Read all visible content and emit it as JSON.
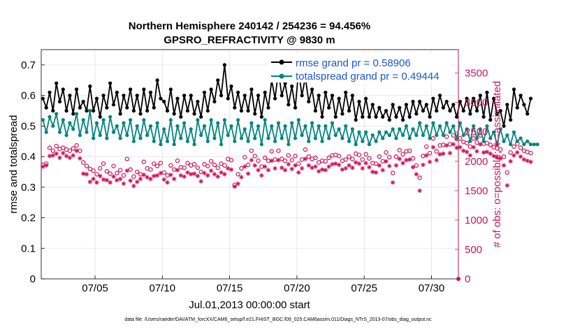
{
  "colors": {
    "rmse": "#000000",
    "spread": "#00857f",
    "obs": "#d0125a",
    "legend_text": "#1a56d6"
  },
  "chart_data": {
    "type": "line",
    "title": "Northern Hemisphere 240142 / 254236 = 94.456%",
    "subtitle": "GPSRO_REFRACTIVITY @ 9830 m",
    "xlabel": "Jul.01,2013 00:00:00 start",
    "ylabel": "rmse and totalspread",
    "y2label": "# of obs: o=possible; ∗=assimilated",
    "footer": "data file: /Users/raeder/DAI/ATM_forcXX/CAM6_setup/f.e21.FHIST_BGC.f09_025.CAM6assim.011/Diags_NTrS_2013-07/obs_diag_output.nc",
    "xlim": [
      1,
      32
    ],
    "ylim": [
      0,
      0.75
    ],
    "y2lim": [
      0,
      3900
    ],
    "xticks": [
      5,
      10,
      15,
      20,
      25,
      30
    ],
    "xtick_labels": [
      "07/05",
      "07/10",
      "07/15",
      "07/20",
      "07/25",
      "07/30"
    ],
    "yticks": [
      0,
      0.1,
      0.2,
      0.3,
      0.4,
      0.5,
      0.6,
      0.7
    ],
    "ytick_labels": [
      "0",
      "0.1",
      "0.2",
      "0.3",
      "0.4",
      "0.5",
      "0.6",
      "0.7"
    ],
    "y2ticks": [
      0,
      500,
      1000,
      1500,
      2000,
      2500,
      3000,
      3500
    ],
    "y2tick_labels": [
      "0",
      "500",
      "1000",
      "1500",
      "2000",
      "2500",
      "3000",
      "3500"
    ],
    "grid": true,
    "legend_placement": "top-right",
    "x_start": 1.125,
    "x_step": 0.25,
    "series": [
      {
        "name": "rmse grand pr = 0.58906",
        "axis": "left",
        "values": [
          0.59,
          0.56,
          0.61,
          0.55,
          0.64,
          0.58,
          0.62,
          0.55,
          0.6,
          0.54,
          0.62,
          0.56,
          0.58,
          0.55,
          0.63,
          0.55,
          0.59,
          0.53,
          0.6,
          0.56,
          0.64,
          0.57,
          0.61,
          0.54,
          0.6,
          0.56,
          0.62,
          0.55,
          0.6,
          0.54,
          0.62,
          0.55,
          0.61,
          0.56,
          0.65,
          0.59,
          0.58,
          0.55,
          0.62,
          0.54,
          0.59,
          0.53,
          0.6,
          0.55,
          0.6,
          0.54,
          0.58,
          0.53,
          0.61,
          0.55,
          0.62,
          0.58,
          0.65,
          0.6,
          0.7,
          0.59,
          0.63,
          0.56,
          0.61,
          0.55,
          0.6,
          0.55,
          0.62,
          0.54,
          0.6,
          0.53,
          0.61,
          0.56,
          0.65,
          0.59,
          0.68,
          0.6,
          0.64,
          0.57,
          0.63,
          0.56,
          0.68,
          0.6,
          0.66,
          0.58,
          0.62,
          0.55,
          0.6,
          0.53,
          0.61,
          0.56,
          0.6,
          0.53,
          0.59,
          0.54,
          0.61,
          0.55,
          0.6,
          0.52,
          0.58,
          0.53,
          0.59,
          0.53,
          0.57,
          0.53,
          0.56,
          0.53,
          0.55,
          0.52,
          0.57,
          0.53,
          0.56,
          0.52,
          0.57,
          0.53,
          0.58,
          0.54,
          0.58,
          0.55,
          0.57,
          0.53,
          0.59,
          0.55,
          0.6,
          0.56,
          0.58,
          0.55,
          0.57,
          0.53,
          0.58,
          0.55,
          0.59,
          0.54,
          0.59,
          0.55,
          0.6,
          0.53,
          0.61,
          0.52,
          0.59,
          0.54,
          0.55,
          0.5,
          0.57,
          0.52,
          0.62,
          0.56,
          0.6,
          0.57,
          0.54,
          0.59
        ]
      },
      {
        "name": "totalspread grand pr = 0.49444",
        "axis": "left",
        "values": [
          0.52,
          0.48,
          0.53,
          0.5,
          0.54,
          0.48,
          0.52,
          0.47,
          0.51,
          0.49,
          0.54,
          0.47,
          0.52,
          0.48,
          0.55,
          0.46,
          0.51,
          0.47,
          0.52,
          0.46,
          0.53,
          0.48,
          0.5,
          0.46,
          0.51,
          0.47,
          0.52,
          0.45,
          0.5,
          0.46,
          0.52,
          0.47,
          0.5,
          0.45,
          0.51,
          0.44,
          0.49,
          0.45,
          0.52,
          0.44,
          0.5,
          0.46,
          0.51,
          0.45,
          0.49,
          0.44,
          0.52,
          0.47,
          0.5,
          0.45,
          0.52,
          0.46,
          0.51,
          0.44,
          0.52,
          0.47,
          0.5,
          0.45,
          0.52,
          0.46,
          0.49,
          0.45,
          0.51,
          0.46,
          0.5,
          0.44,
          0.52,
          0.46,
          0.5,
          0.45,
          0.51,
          0.46,
          0.5,
          0.44,
          0.51,
          0.46,
          0.52,
          0.47,
          0.5,
          0.45,
          0.51,
          0.46,
          0.5,
          0.45,
          0.5,
          0.46,
          0.51,
          0.47,
          0.49,
          0.46,
          0.5,
          0.45,
          0.49,
          0.44,
          0.48,
          0.45,
          0.48,
          0.44,
          0.47,
          0.45,
          0.48,
          0.46,
          0.48,
          0.47,
          0.49,
          0.46,
          0.49,
          0.47,
          0.5,
          0.46,
          0.49,
          0.47,
          0.51,
          0.47,
          0.5,
          0.46,
          0.51,
          0.47,
          0.5,
          0.47,
          0.51,
          0.48,
          0.5,
          0.46,
          0.51,
          0.47,
          0.49,
          0.45,
          0.5,
          0.46,
          0.49,
          0.45,
          0.5,
          0.46,
          0.48,
          0.44,
          0.49,
          0.45,
          0.47,
          0.44,
          0.48,
          0.45,
          0.46,
          0.44,
          0.45,
          0.44,
          0.44,
          0.44
        ]
      },
      {
        "name": "possible",
        "axis": "right",
        "marker": "o",
        "values": [
          1940,
          1960,
          2230,
          2180,
          2260,
          2210,
          2230,
          2200,
          2180,
          2220,
          2270,
          2180,
          1980,
          1920,
          1870,
          1840,
          1780,
          1880,
          1960,
          1830,
          1790,
          1920,
          1800,
          1850,
          1760,
          2040,
          1860,
          1740,
          1820,
          1780,
          1990,
          1880,
          1860,
          1960,
          1920,
          1970,
          1810,
          1760,
          1930,
          1860,
          2010,
          1900,
          1890,
          1970,
          1930,
          1950,
          1890,
          1820,
          1950,
          1920,
          2000,
          1940,
          1890,
          1960,
          1930,
          2040,
          2020,
          1600,
          1780,
          1880,
          2070,
          1940,
          2180,
          2090,
          2010,
          1910,
          2060,
          2010,
          2170,
          2030,
          2180,
          2040,
          2010,
          2100,
          2020,
          2090,
          1960,
          2030,
          2200,
          2080,
          2040,
          2060,
          1980,
          2010,
          2000,
          2060,
          2100,
          2110,
          2090,
          2010,
          2030,
          2080,
          2040,
          2130,
          2110,
          2030,
          2120,
          2050,
          1970,
          1960,
          2080,
          2000,
          2150,
          2070,
          1800,
          2080,
          2190,
          2120,
          2170,
          2180,
          2050,
          1930,
          1720,
          2090,
          2250,
          2140,
          2390,
          2170,
          2270,
          2280,
          2420,
          2290,
          2440,
          2380,
          2390,
          2330,
          2310,
          2250,
          2390,
          2320,
          2440,
          2300,
          2310,
          2280,
          2240,
          2220,
          2200,
          2080,
          1810,
          2150,
          2250,
          2300,
          2230,
          2180,
          2160,
          2140
        ]
      },
      {
        "name": "assimilated",
        "axis": "right",
        "marker": "*",
        "values": [
          1910,
          1930,
          2090,
          2100,
          2130,
          2060,
          2140,
          2090,
          2060,
          2100,
          2180,
          2050,
          1790,
          1780,
          1650,
          1700,
          1640,
          1750,
          1690,
          1680,
          1640,
          1740,
          1680,
          1700,
          1620,
          1840,
          1670,
          1580,
          1650,
          1700,
          1770,
          1730,
          1700,
          1750,
          1760,
          1800,
          1690,
          1640,
          1770,
          1700,
          1850,
          1760,
          1740,
          1810,
          1780,
          1790,
          1750,
          1660,
          1800,
          1760,
          1840,
          1780,
          1740,
          1810,
          1780,
          1880,
          1860,
          1570,
          1620,
          1730,
          1910,
          1790,
          2020,
          1930,
          1850,
          1760,
          1910,
          1850,
          2010,
          1880,
          2020,
          1890,
          1850,
          1950,
          1870,
          1930,
          1810,
          1880,
          2040,
          1930,
          1890,
          1910,
          1830,
          1860,
          1850,
          1910,
          1950,
          1960,
          1940,
          1860,
          1880,
          1930,
          1890,
          1980,
          1960,
          1880,
          1970,
          1900,
          1820,
          1810,
          1930,
          1850,
          2000,
          1920,
          1640,
          1930,
          2040,
          1970,
          2020,
          2030,
          1900,
          1780,
          1500,
          1940,
          2100,
          1990,
          2240,
          2020,
          2120,
          2130,
          2270,
          2140,
          2290,
          2230,
          2240,
          2180,
          2160,
          2100,
          2240,
          2170,
          2290,
          2150,
          2160,
          2130,
          2090,
          2070,
          2050,
          1930,
          1590,
          2000,
          2100,
          2150,
          2080,
          2030,
          2010,
          1990
        ]
      }
    ]
  }
}
